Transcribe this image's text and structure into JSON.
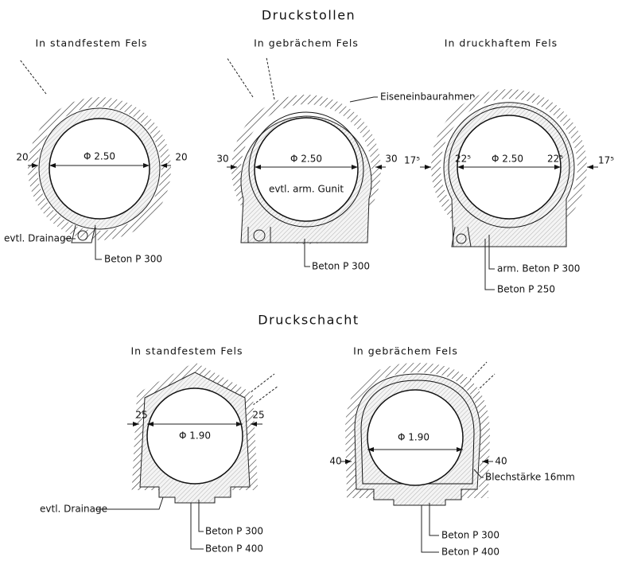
{
  "sections": [
    {
      "title": "Druckstollen",
      "panels": [
        {
          "title": "In standfestem Fels",
          "diameter": "Φ 2.50",
          "left": "20",
          "right": "20",
          "labels": [
            "evtl. Drainage",
            "Beton P 300"
          ]
        },
        {
          "title": "In gebrächem Fels",
          "diameter": "Φ 2.50",
          "left": "30",
          "right": "30",
          "labels": [
            "Eiseneinbaurahmen",
            "evtl. arm. Gunit",
            "Beton P 300"
          ]
        },
        {
          "title": "In druckhaftem Fels",
          "diameter": "Φ 2.50",
          "left": "17⁵",
          "right": "17⁵",
          "inner_left": "22⁵",
          "inner_right": "22⁵",
          "labels": [
            "arm. Beton P 300",
            "Beton P 250"
          ]
        }
      ]
    },
    {
      "title": "Druckschacht",
      "panels": [
        {
          "title": "In standfestem Fels",
          "diameter": "Φ 1.90",
          "left": "25",
          "right": "25",
          "labels": [
            "evtl. Drainage",
            "Beton P 300",
            "Beton P 400"
          ]
        },
        {
          "title": "In gebrächem Fels",
          "diameter": "Φ 1.90",
          "left": "40",
          "right": "40",
          "labels": [
            "Blechstärke 16mm",
            "Beton P 300",
            "Beton P 400"
          ]
        }
      ]
    }
  ]
}
